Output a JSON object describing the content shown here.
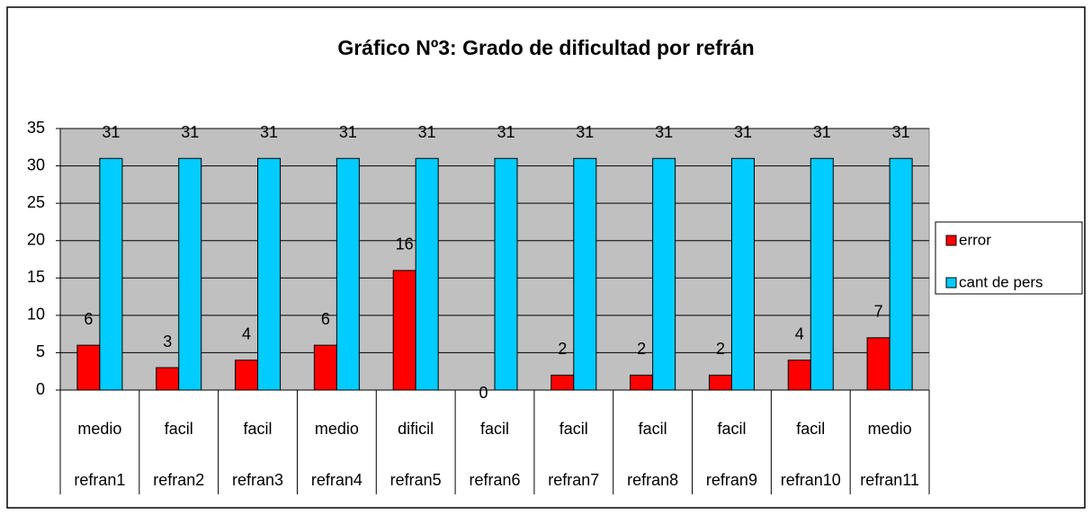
{
  "chart_data": {
    "type": "bar",
    "title": "Gráfico Nº3: Grado de dificultad por refrán",
    "categories": [
      "refran1",
      "refran2",
      "refran3",
      "refran4",
      "refran5",
      "refran6",
      "refran7",
      "refran8",
      "refran9",
      "refran10",
      "refran11"
    ],
    "category_difficulty": [
      "medio",
      "facil",
      "facil",
      "medio",
      "dificil",
      "facil",
      "facil",
      "facil",
      "facil",
      "facil",
      "medio"
    ],
    "series": [
      {
        "name": "error",
        "color": "#ff0000",
        "values": [
          6,
          3,
          4,
          6,
          16,
          0,
          2,
          2,
          2,
          4,
          7
        ]
      },
      {
        "name": "cant de pers",
        "color": "#00ccff",
        "values": [
          31,
          31,
          31,
          31,
          31,
          31,
          31,
          31,
          31,
          31,
          31
        ]
      }
    ],
    "ylim": [
      0,
      35
    ],
    "yticks": [
      0,
      5,
      10,
      15,
      20,
      25,
      30,
      35
    ],
    "grid": true,
    "legend": "right"
  }
}
